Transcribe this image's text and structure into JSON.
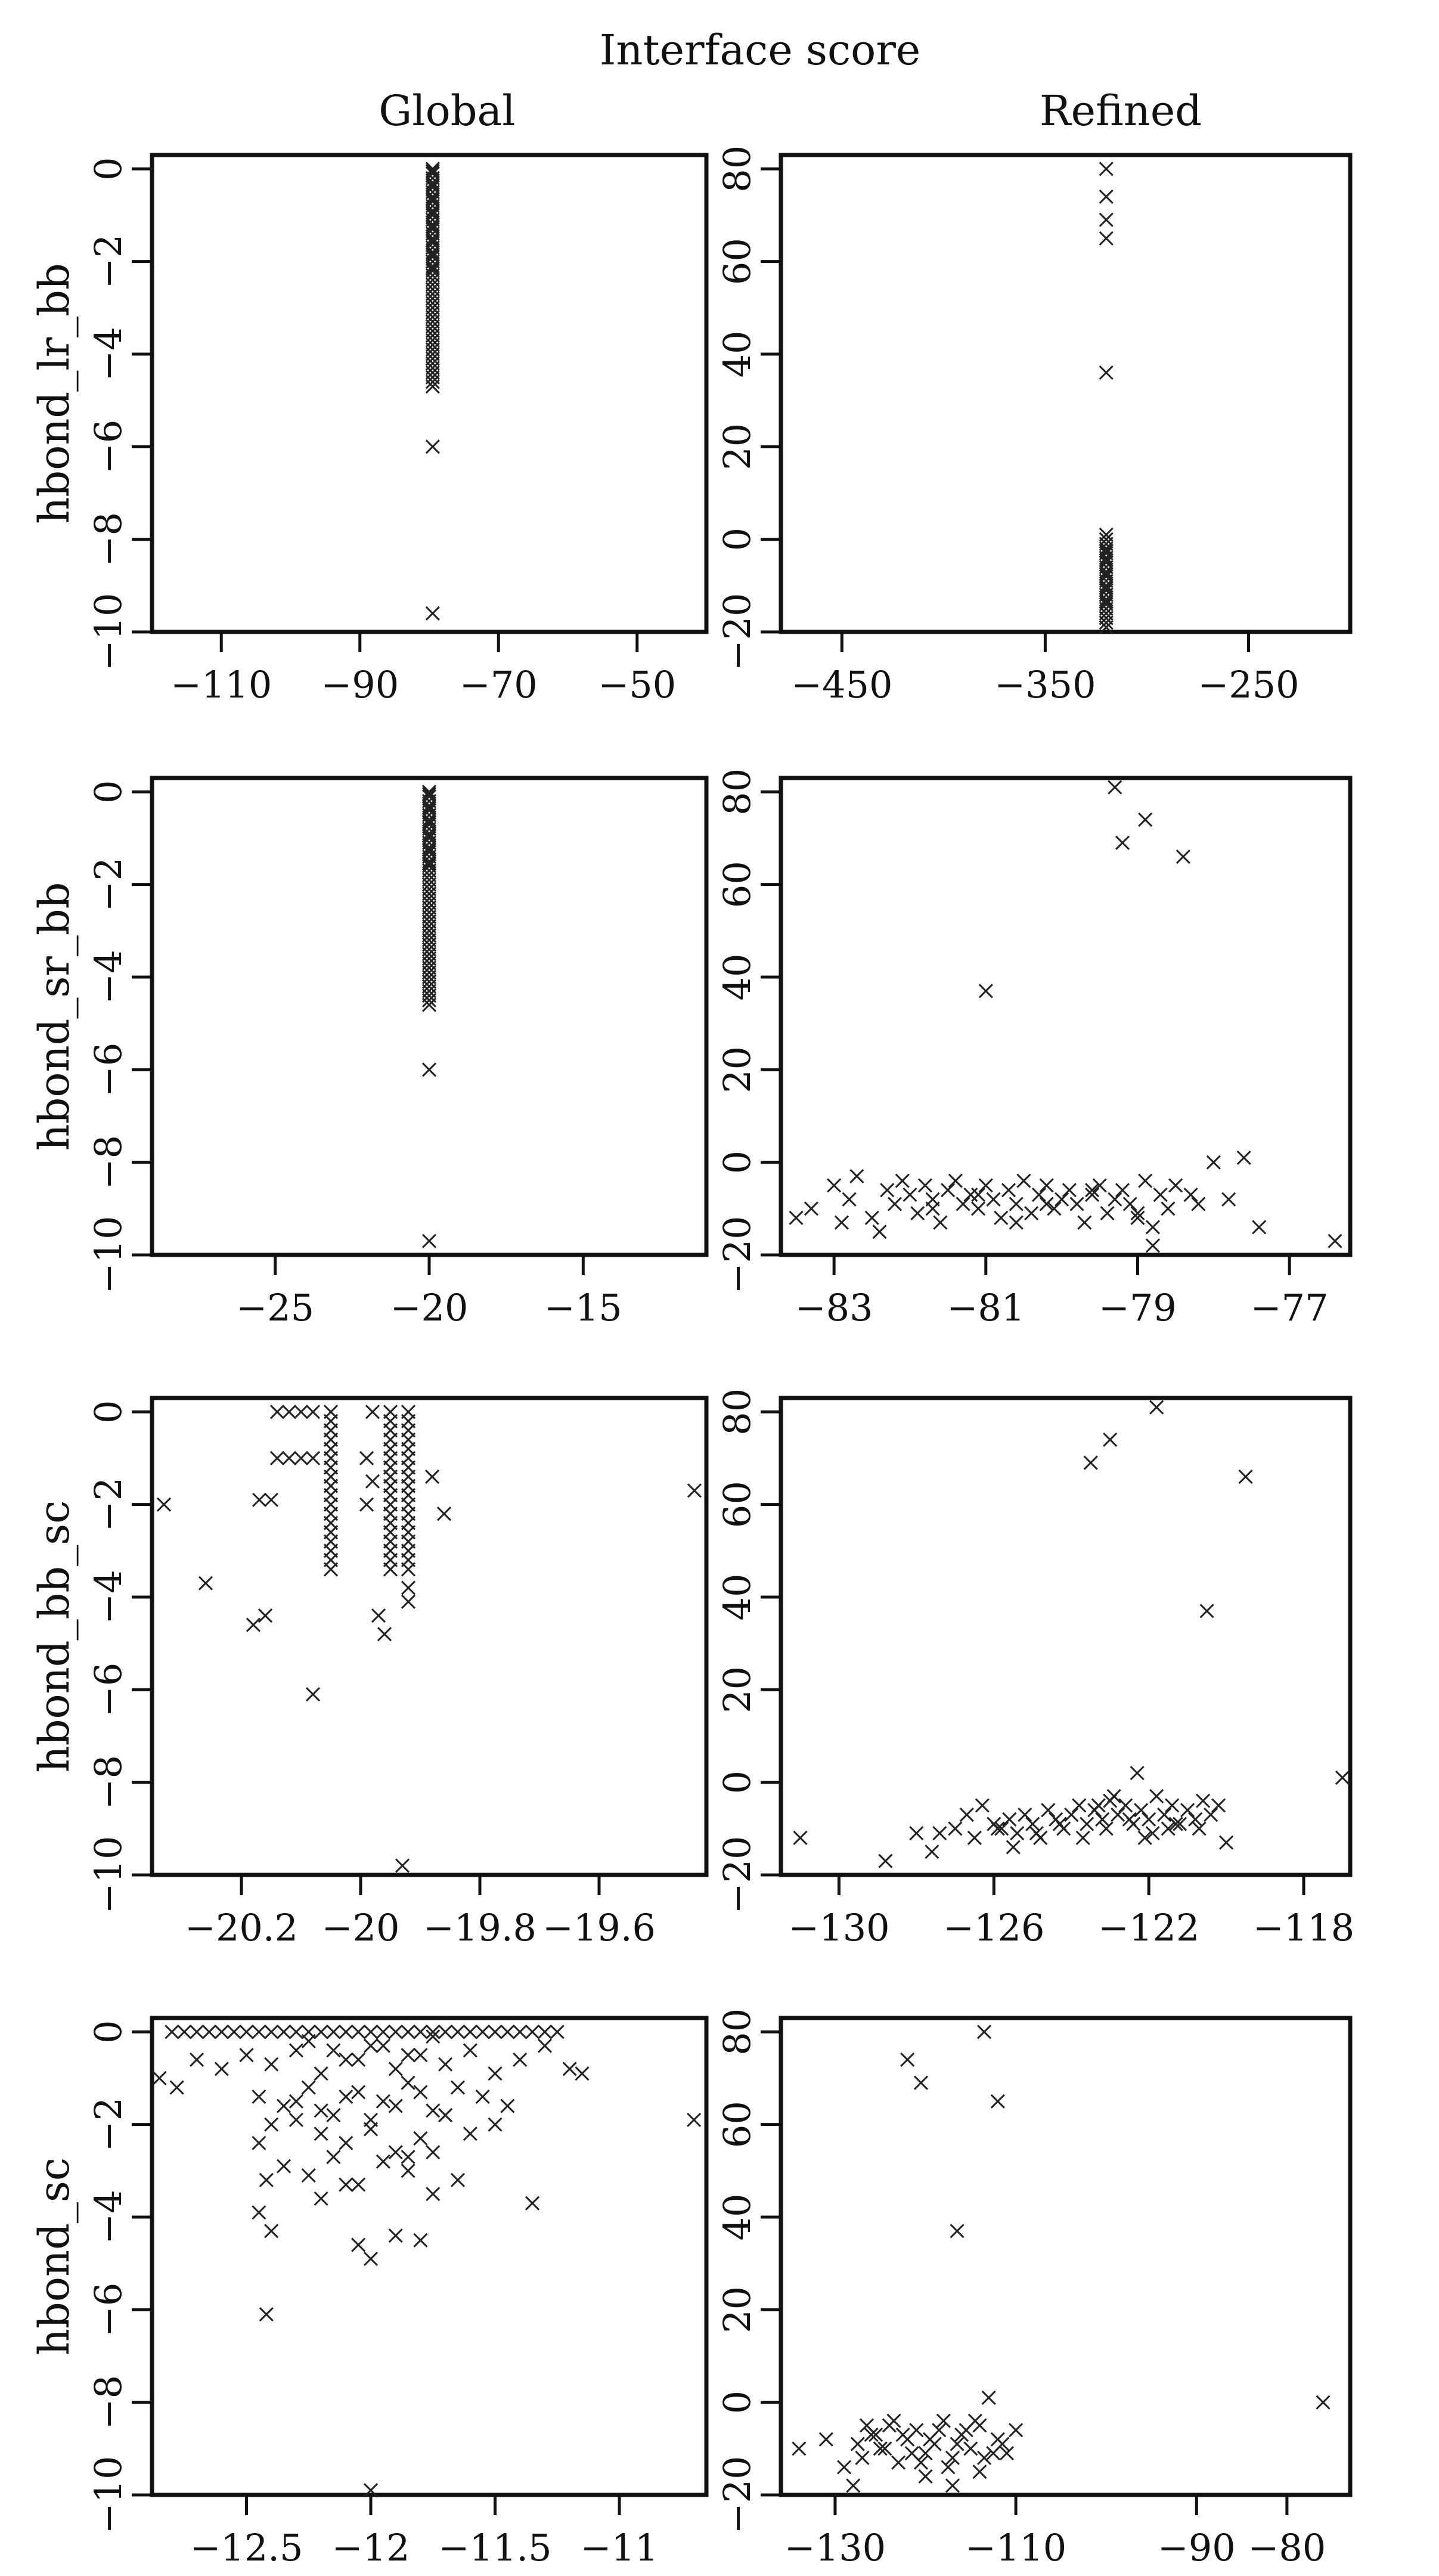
{
  "header": {
    "title": "Interface score",
    "columns": [
      "Global",
      "Refined"
    ]
  },
  "chart_data": [
    {
      "type": "scatter",
      "row": 0,
      "col": 0,
      "column_label": "Global",
      "ylabel": "hbond_lr_bb",
      "xlim": [
        -120,
        -40
      ],
      "ylim": [
        -10,
        0.3
      ],
      "xticks": [
        -110,
        -90,
        -70,
        -50
      ],
      "yticks": [
        0,
        -2,
        -4,
        -6,
        -8,
        -10
      ],
      "x": [
        -79.5,
        -79.5,
        -79.5,
        -79.5,
        -79.5,
        -79.5,
        -79.5,
        -79.5,
        -79.5,
        -79.5,
        -79.5,
        -79.5,
        -79.5,
        -79.5,
        -79.5,
        -79.5,
        -79.5,
        -79.5,
        -79.5,
        -79.5,
        -79.5,
        -79.5,
        -79.5,
        -79.5,
        -79.5,
        -79.5,
        -79.5,
        -79.5,
        -79.5,
        -79.5,
        -79.5,
        -79.5,
        -79.5,
        -79.5,
        -79.5,
        -79.5,
        -79.5,
        -79.5,
        -79.5,
        -79.5,
        -79.5,
        -79.5,
        -79.5,
        -79.5,
        -79.5,
        -79.5,
        -79.5,
        -79.5,
        -79.5,
        -79.5,
        -79.5,
        -79.5,
        -79.5,
        -79.5,
        -79.5,
        -79.5,
        -79.5,
        -79.5
      ],
      "y": [
        0,
        -0.1,
        -0.2,
        -0.3,
        -0.4,
        -0.5,
        -0.6,
        -0.7,
        -0.8,
        -0.9,
        -1.0,
        -1.1,
        -1.2,
        -1.3,
        -1.4,
        -1.5,
        -1.6,
        -1.7,
        -1.8,
        -1.9,
        -2.0,
        -2.1,
        -2.2,
        -2.3,
        -2.4,
        -2.5,
        -2.6,
        -2.7,
        -2.8,
        -2.9,
        -3.0,
        -3.1,
        -3.2,
        -3.3,
        -3.4,
        -3.5,
        -3.6,
        -3.7,
        -3.8,
        -3.9,
        -4.0,
        -4.1,
        -4.2,
        -4.3,
        -4.4,
        -4.5,
        -4.6,
        -4.7,
        -0.05,
        -0.35,
        -0.65,
        -0.95,
        -1.25,
        -1.55,
        -1.85,
        -6.0,
        -9.6,
        -2.15
      ]
    },
    {
      "type": "scatter",
      "row": 0,
      "col": 1,
      "column_label": "Refined",
      "ylabel": "",
      "xlim": [
        -480,
        -200
      ],
      "ylim": [
        -20,
        83
      ],
      "xticks": [
        -450,
        -350,
        -250
      ],
      "yticks": [
        80,
        60,
        40,
        20,
        0,
        -20
      ],
      "x": [
        -320,
        -320,
        -320,
        -320,
        -320,
        -320,
        -320,
        -320,
        -320,
        -320,
        -320,
        -320,
        -320,
        -320,
        -320,
        -320,
        -320,
        -320,
        -320,
        -320,
        -320,
        -320,
        -320,
        -320,
        -320,
        -320,
        -320,
        -320,
        -320,
        -320,
        -320
      ],
      "y": [
        80,
        74,
        69,
        65,
        36,
        1,
        0,
        -1,
        -2,
        -3,
        -4,
        -5,
        -6,
        -7,
        -8,
        -9,
        -10,
        -11,
        -12,
        -13,
        -14,
        -15,
        -16,
        -17,
        -18,
        -19,
        -4.5,
        -7.5,
        -10.5,
        -13.5,
        -2.5
      ]
    },
    {
      "type": "scatter",
      "row": 1,
      "col": 0,
      "column_label": "Global",
      "ylabel": "hbond_sr_bb",
      "xlim": [
        -29,
        -11
      ],
      "ylim": [
        -10,
        0.3
      ],
      "xticks": [
        -25,
        -20,
        -15
      ],
      "yticks": [
        0,
        -2,
        -4,
        -6,
        -8,
        -10
      ],
      "x": [
        -20,
        -20,
        -20,
        -20,
        -20,
        -20,
        -20,
        -20,
        -20,
        -20,
        -20,
        -20,
        -20,
        -20,
        -20,
        -20,
        -20,
        -20,
        -20,
        -20,
        -20,
        -20,
        -20,
        -20,
        -20,
        -20,
        -20,
        -20,
        -20,
        -20,
        -20,
        -20,
        -20,
        -20,
        -20,
        -20,
        -20,
        -20,
        -20,
        -20,
        -20,
        -20,
        -20,
        -20,
        -20,
        -20,
        -20,
        -20,
        -20,
        -20,
        -20,
        -20,
        -20,
        -20,
        -20
      ],
      "y": [
        0,
        -0.1,
        -0.2,
        -0.3,
        -0.4,
        -0.5,
        -0.6,
        -0.7,
        -0.8,
        -0.9,
        -1.0,
        -1.1,
        -1.2,
        -1.3,
        -1.4,
        -1.5,
        -1.6,
        -1.7,
        -1.8,
        -1.9,
        -2.0,
        -2.1,
        -2.2,
        -2.3,
        -2.4,
        -2.5,
        -2.6,
        -2.7,
        -2.8,
        -2.9,
        -3.0,
        -3.1,
        -3.2,
        -3.3,
        -3.4,
        -3.5,
        -3.6,
        -3.7,
        -3.8,
        -3.9,
        -4.0,
        -4.1,
        -4.2,
        -4.3,
        -4.4,
        -4.5,
        -4.6,
        -0.05,
        -0.35,
        -0.65,
        -0.95,
        -1.25,
        -1.55,
        -6.0,
        -9.7
      ]
    },
    {
      "type": "scatter",
      "row": 1,
      "col": 1,
      "column_label": "Refined",
      "ylabel": "",
      "xlim": [
        -83.7,
        -76.2
      ],
      "ylim": [
        -20,
        83
      ],
      "xticks": [
        -83,
        -81,
        -79,
        -77
      ],
      "yticks": [
        80,
        60,
        40,
        20,
        0,
        -20
      ],
      "x": [
        -79.3,
        -79.2,
        -78.9,
        -78.4,
        -81.0,
        -83.5,
        -83.3,
        -83.0,
        -82.8,
        -82.7,
        -82.5,
        -82.3,
        -82.2,
        -82.1,
        -82.0,
        -81.9,
        -81.8,
        -81.7,
        -81.6,
        -81.5,
        -81.4,
        -81.3,
        -81.2,
        -81.1,
        -81.0,
        -80.9,
        -80.8,
        -80.7,
        -80.6,
        -80.5,
        -80.4,
        -80.3,
        -80.2,
        -80.1,
        -80.0,
        -79.9,
        -79.8,
        -79.7,
        -79.6,
        -79.5,
        -79.4,
        -79.3,
        -79.2,
        -79.1,
        -79.0,
        -78.9,
        -78.8,
        -78.7,
        -78.6,
        -78.5,
        -78.3,
        -78.2,
        -78.0,
        -77.8,
        -77.6,
        -77.4,
        -76.4,
        -82.4,
        -81.7,
        -81.1,
        -80.6,
        -80.2,
        -79.6,
        -79.0,
        -78.8,
        -82.9
      ],
      "y": [
        81,
        69,
        74,
        66,
        37,
        -12,
        -10,
        -5,
        -8,
        -3,
        -12,
        -6,
        -9,
        -4,
        -7,
        -11,
        -5,
        -8,
        -13,
        -6,
        -4,
        -9,
        -7,
        -10,
        -5,
        -8,
        -12,
        -6,
        -9,
        -4,
        -11,
        -7,
        -5,
        -10,
        -8,
        -6,
        -9,
        -13,
        -7,
        -5,
        -11,
        -8,
        -6,
        -9,
        -12,
        -4,
        -18,
        -7,
        -10,
        -5,
        -7,
        -9,
        0,
        -8,
        1,
        -14,
        -17,
        -15,
        -10,
        -7,
        -13,
        -9,
        -6,
        -11,
        -14,
        -13
      ]
    },
    {
      "type": "scatter",
      "row": 2,
      "col": 0,
      "column_label": "Global",
      "ylabel": "hbond_bb_sc",
      "xlim": [
        -20.35,
        -19.42
      ],
      "ylim": [
        -10,
        0.3
      ],
      "xticks": [
        -20.2,
        -20.0,
        -19.8,
        -19.6
      ],
      "yticks": [
        0,
        -2,
        -4,
        -6,
        -8,
        -10
      ],
      "x": [
        -20.05,
        -20.05,
        -20.05,
        -20.05,
        -20.05,
        -20.05,
        -20.05,
        -20.05,
        -20.05,
        -20.05,
        -20.05,
        -20.05,
        -20.05,
        -20.05,
        -20.05,
        -20.05,
        -20.05,
        -20.05,
        -19.95,
        -19.95,
        -19.95,
        -19.95,
        -19.95,
        -19.95,
        -19.95,
        -19.95,
        -19.95,
        -19.95,
        -19.95,
        -19.95,
        -19.95,
        -19.95,
        -19.95,
        -19.95,
        -19.95,
        -19.95,
        -19.92,
        -19.92,
        -19.92,
        -19.92,
        -19.92,
        -19.92,
        -19.92,
        -19.92,
        -19.92,
        -19.92,
        -19.92,
        -19.92,
        -19.92,
        -19.92,
        -19.92,
        -19.92,
        -19.92,
        -19.92,
        -19.92,
        -19.92,
        -20.14,
        -20.12,
        -20.1,
        -20.08,
        -20.14,
        -20.12,
        -20.1,
        -20.08,
        -19.98,
        -19.99,
        -19.98,
        -19.99,
        -20.33,
        -20.26,
        -20.18,
        -20.17,
        -20.16,
        -20.15,
        -20.08,
        -19.97,
        -19.96,
        -19.93,
        -19.88,
        -19.86,
        -19.44
      ],
      "y": [
        0,
        -0.2,
        -0.4,
        -0.6,
        -0.8,
        -1.0,
        -1.2,
        -1.4,
        -1.6,
        -1.8,
        -2.0,
        -2.2,
        -2.4,
        -2.6,
        -2.8,
        -3.0,
        -3.2,
        -3.4,
        0,
        -0.2,
        -0.4,
        -0.6,
        -0.8,
        -1.0,
        -1.2,
        -1.4,
        -1.6,
        -1.8,
        -2.0,
        -2.2,
        -2.4,
        -2.6,
        -2.8,
        -3.0,
        -3.2,
        -3.4,
        0,
        -0.2,
        -0.4,
        -0.6,
        -0.8,
        -1.0,
        -1.2,
        -1.4,
        -1.6,
        -1.8,
        -2.0,
        -2.2,
        -2.4,
        -2.6,
        -2.8,
        -3.0,
        -3.2,
        -3.4,
        -3.8,
        -4.1,
        0,
        0,
        0,
        0,
        -1.0,
        -1.0,
        -1.0,
        -1.0,
        0,
        -1.0,
        -1.5,
        -2.0,
        -2.0,
        -3.7,
        -4.6,
        -1.9,
        -4.4,
        -1.9,
        -6.1,
        -4.4,
        -4.8,
        -9.8,
        -1.4,
        -2.2,
        -1.7
      ]
    },
    {
      "type": "scatter",
      "row": 2,
      "col": 1,
      "column_label": "Refined",
      "ylabel": "",
      "xlim": [
        -131.5,
        -116.8
      ],
      "ylim": [
        -20,
        83
      ],
      "xticks": [
        -130,
        -126,
        -122,
        -118
      ],
      "yticks": [
        80,
        60,
        40,
        20,
        0,
        -20
      ],
      "x": [
        -123.5,
        -123.0,
        -121.8,
        -119.5,
        -120.5,
        -131.0,
        -128.8,
        -128.0,
        -127.6,
        -127.4,
        -127.0,
        -126.7,
        -126.5,
        -126.3,
        -126.0,
        -125.8,
        -125.6,
        -125.4,
        -125.2,
        -125.0,
        -124.8,
        -124.6,
        -124.4,
        -124.2,
        -124.0,
        -123.8,
        -123.6,
        -123.4,
        -123.2,
        -123.0,
        -122.8,
        -122.6,
        -122.4,
        -122.2,
        -122.0,
        -121.8,
        -121.6,
        -121.4,
        -121.2,
        -121.0,
        -120.8,
        -120.6,
        -120.4,
        -120.2,
        -120.0,
        -125.5,
        -124.9,
        -124.3,
        -123.7,
        -123.1,
        -122.5,
        -121.9,
        -121.3,
        -120.7,
        -117.0,
        -122.3,
        -122.9,
        -123.3,
        -121.5,
        -122.1,
        -125.9
      ],
      "y": [
        69,
        74,
        81,
        66,
        37,
        -12,
        -17,
        -11,
        -15,
        -11,
        -10,
        -7,
        -12,
        -5,
        -9,
        -10,
        -8,
        -11,
        -7,
        -9,
        -12,
        -6,
        -8,
        -10,
        -7,
        -5,
        -9,
        -6,
        -8,
        -4,
        -7,
        -5,
        -9,
        -6,
        -8,
        -3,
        -7,
        -5,
        -9,
        -6,
        -8,
        -4,
        -7,
        -5,
        -13,
        -14,
        -11,
        -9,
        -12,
        -10,
        -8,
        -11,
        -9,
        -10,
        1,
        2,
        -3,
        -5,
        -10,
        -12,
        -10
      ]
    },
    {
      "type": "scatter",
      "row": 3,
      "col": 0,
      "column_label": "Global",
      "ylabel": "hbond_sc",
      "xlim": [
        -12.88,
        -10.65
      ],
      "ylim": [
        -10,
        0.3
      ],
      "xticks": [
        -12.5,
        -12.0,
        -11.5,
        -11.0
      ],
      "yticks": [
        0,
        -2,
        -4,
        -6,
        -8,
        -10
      ],
      "x": [
        -12.8,
        -12.75,
        -12.7,
        -12.65,
        -12.6,
        -12.55,
        -12.5,
        -12.45,
        -12.4,
        -12.35,
        -12.3,
        -12.25,
        -12.2,
        -12.15,
        -12.1,
        -12.05,
        -12.0,
        -11.95,
        -11.9,
        -11.85,
        -11.8,
        -11.75,
        -11.7,
        -11.65,
        -11.6,
        -11.55,
        -11.5,
        -11.45,
        -11.4,
        -11.35,
        -11.3,
        -11.25,
        -12.85,
        -12.78,
        -12.7,
        -12.6,
        -12.5,
        -12.4,
        -12.3,
        -12.2,
        -12.1,
        -12.0,
        -11.9,
        -11.8,
        -11.7,
        -11.6,
        -11.5,
        -11.4,
        -11.3,
        -11.2,
        -12.45,
        -12.35,
        -12.25,
        -12.15,
        -12.05,
        -11.95,
        -11.85,
        -11.75,
        -11.65,
        -11.55,
        -11.45,
        -12.4,
        -12.3,
        -12.2,
        -12.1,
        -12.0,
        -11.9,
        -11.8,
        -11.7,
        -11.6,
        -11.5,
        -12.35,
        -12.25,
        -12.15,
        -12.05,
        -11.95,
        -11.85,
        -11.75,
        -11.65,
        -12.3,
        -12.2,
        -12.1,
        -12.0,
        -11.9,
        -11.8,
        -11.7,
        -12.25,
        -12.15,
        -12.05,
        -11.95,
        -11.85,
        -11.75,
        -12.45,
        -12.4,
        -12.2,
        -12.05,
        -11.9,
        -11.75,
        -11.35,
        -12.45,
        -12.42,
        -12.1,
        -12.0,
        -11.85,
        -11.8,
        -12.42,
        -12.0,
        -11.15,
        -10.7
      ],
      "y": [
        0,
        0,
        0,
        0,
        0,
        0,
        0,
        0,
        0,
        0,
        0,
        0,
        0,
        0,
        0,
        0,
        0,
        0,
        0,
        0,
        0,
        0,
        0,
        0,
        0,
        0,
        0,
        0,
        0,
        0,
        0,
        0,
        -1.0,
        -1.2,
        -0.6,
        -0.8,
        -0.5,
        -0.7,
        -0.4,
        -0.9,
        -0.6,
        -0.3,
        -0.8,
        -0.5,
        -0.7,
        -0.4,
        -0.9,
        -0.6,
        -0.3,
        -0.8,
        -1.4,
        -1.6,
        -1.2,
        -1.8,
        -1.3,
        -1.5,
        -1.1,
        -1.7,
        -1.2,
        -1.4,
        -1.6,
        -2.0,
        -1.9,
        -2.2,
        -2.4,
        -2.1,
        -2.6,
        -2.3,
        -1.8,
        -2.2,
        -2.0,
        -2.9,
        -3.1,
        -2.7,
        -3.3,
        -2.8,
        -3.0,
        -2.6,
        -3.2,
        -1.5,
        -1.7,
        -1.4,
        -1.9,
        -1.6,
        -1.3,
        -1.8,
        -0.2,
        -0.4,
        -0.6,
        -0.3,
        -0.5,
        -0.1,
        -3.9,
        -4.3,
        -3.6,
        -4.6,
        -4.4,
        -3.5,
        -3.7,
        -2.4,
        -6.1,
        -3.3,
        -4.9,
        -2.7,
        -4.5,
        -3.2,
        -9.9,
        -0.9,
        -1.9
      ]
    },
    {
      "type": "scatter",
      "row": 3,
      "col": 1,
      "column_label": "Refined",
      "ylabel": "",
      "xlim": [
        -136,
        -73
      ],
      "ylim": [
        -20,
        83
      ],
      "xticks": [
        -130,
        -110,
        -90,
        -80
      ],
      "yticks": [
        80,
        60,
        40,
        20,
        0,
        -20
      ],
      "x": [
        -122,
        -120.5,
        -113.5,
        -112,
        -116.5,
        -134,
        -131,
        -128,
        -127,
        -126,
        -125,
        -124,
        -123,
        -122,
        -121,
        -120,
        -119,
        -118,
        -117,
        -116,
        -115,
        -114,
        -113,
        -112,
        -111,
        -110,
        -127.5,
        -125.5,
        -123.5,
        -121.5,
        -119.5,
        -117.5,
        -115.5,
        -113.5,
        -111.5,
        -126.5,
        -124.5,
        -122.5,
        -120.5,
        -118.5,
        -116.5,
        -114.5,
        -112.5,
        -129,
        -117,
        -114,
        -120,
        -76
      ],
      "y": [
        74,
        69,
        80,
        65,
        37,
        -10,
        -8,
        -18,
        -12,
        -7,
        -10,
        -5,
        -13,
        -8,
        -6,
        -11,
        -9,
        -4,
        -12,
        -7,
        -10,
        -5,
        1,
        -8,
        -11,
        -6,
        -9,
        -7,
        -4,
        -11,
        -8,
        -14,
        -6,
        -12,
        -9,
        -5,
        -10,
        -7,
        -13,
        -6,
        -9,
        -4,
        -11,
        -14,
        -18,
        -15,
        -16,
        0
      ]
    }
  ]
}
